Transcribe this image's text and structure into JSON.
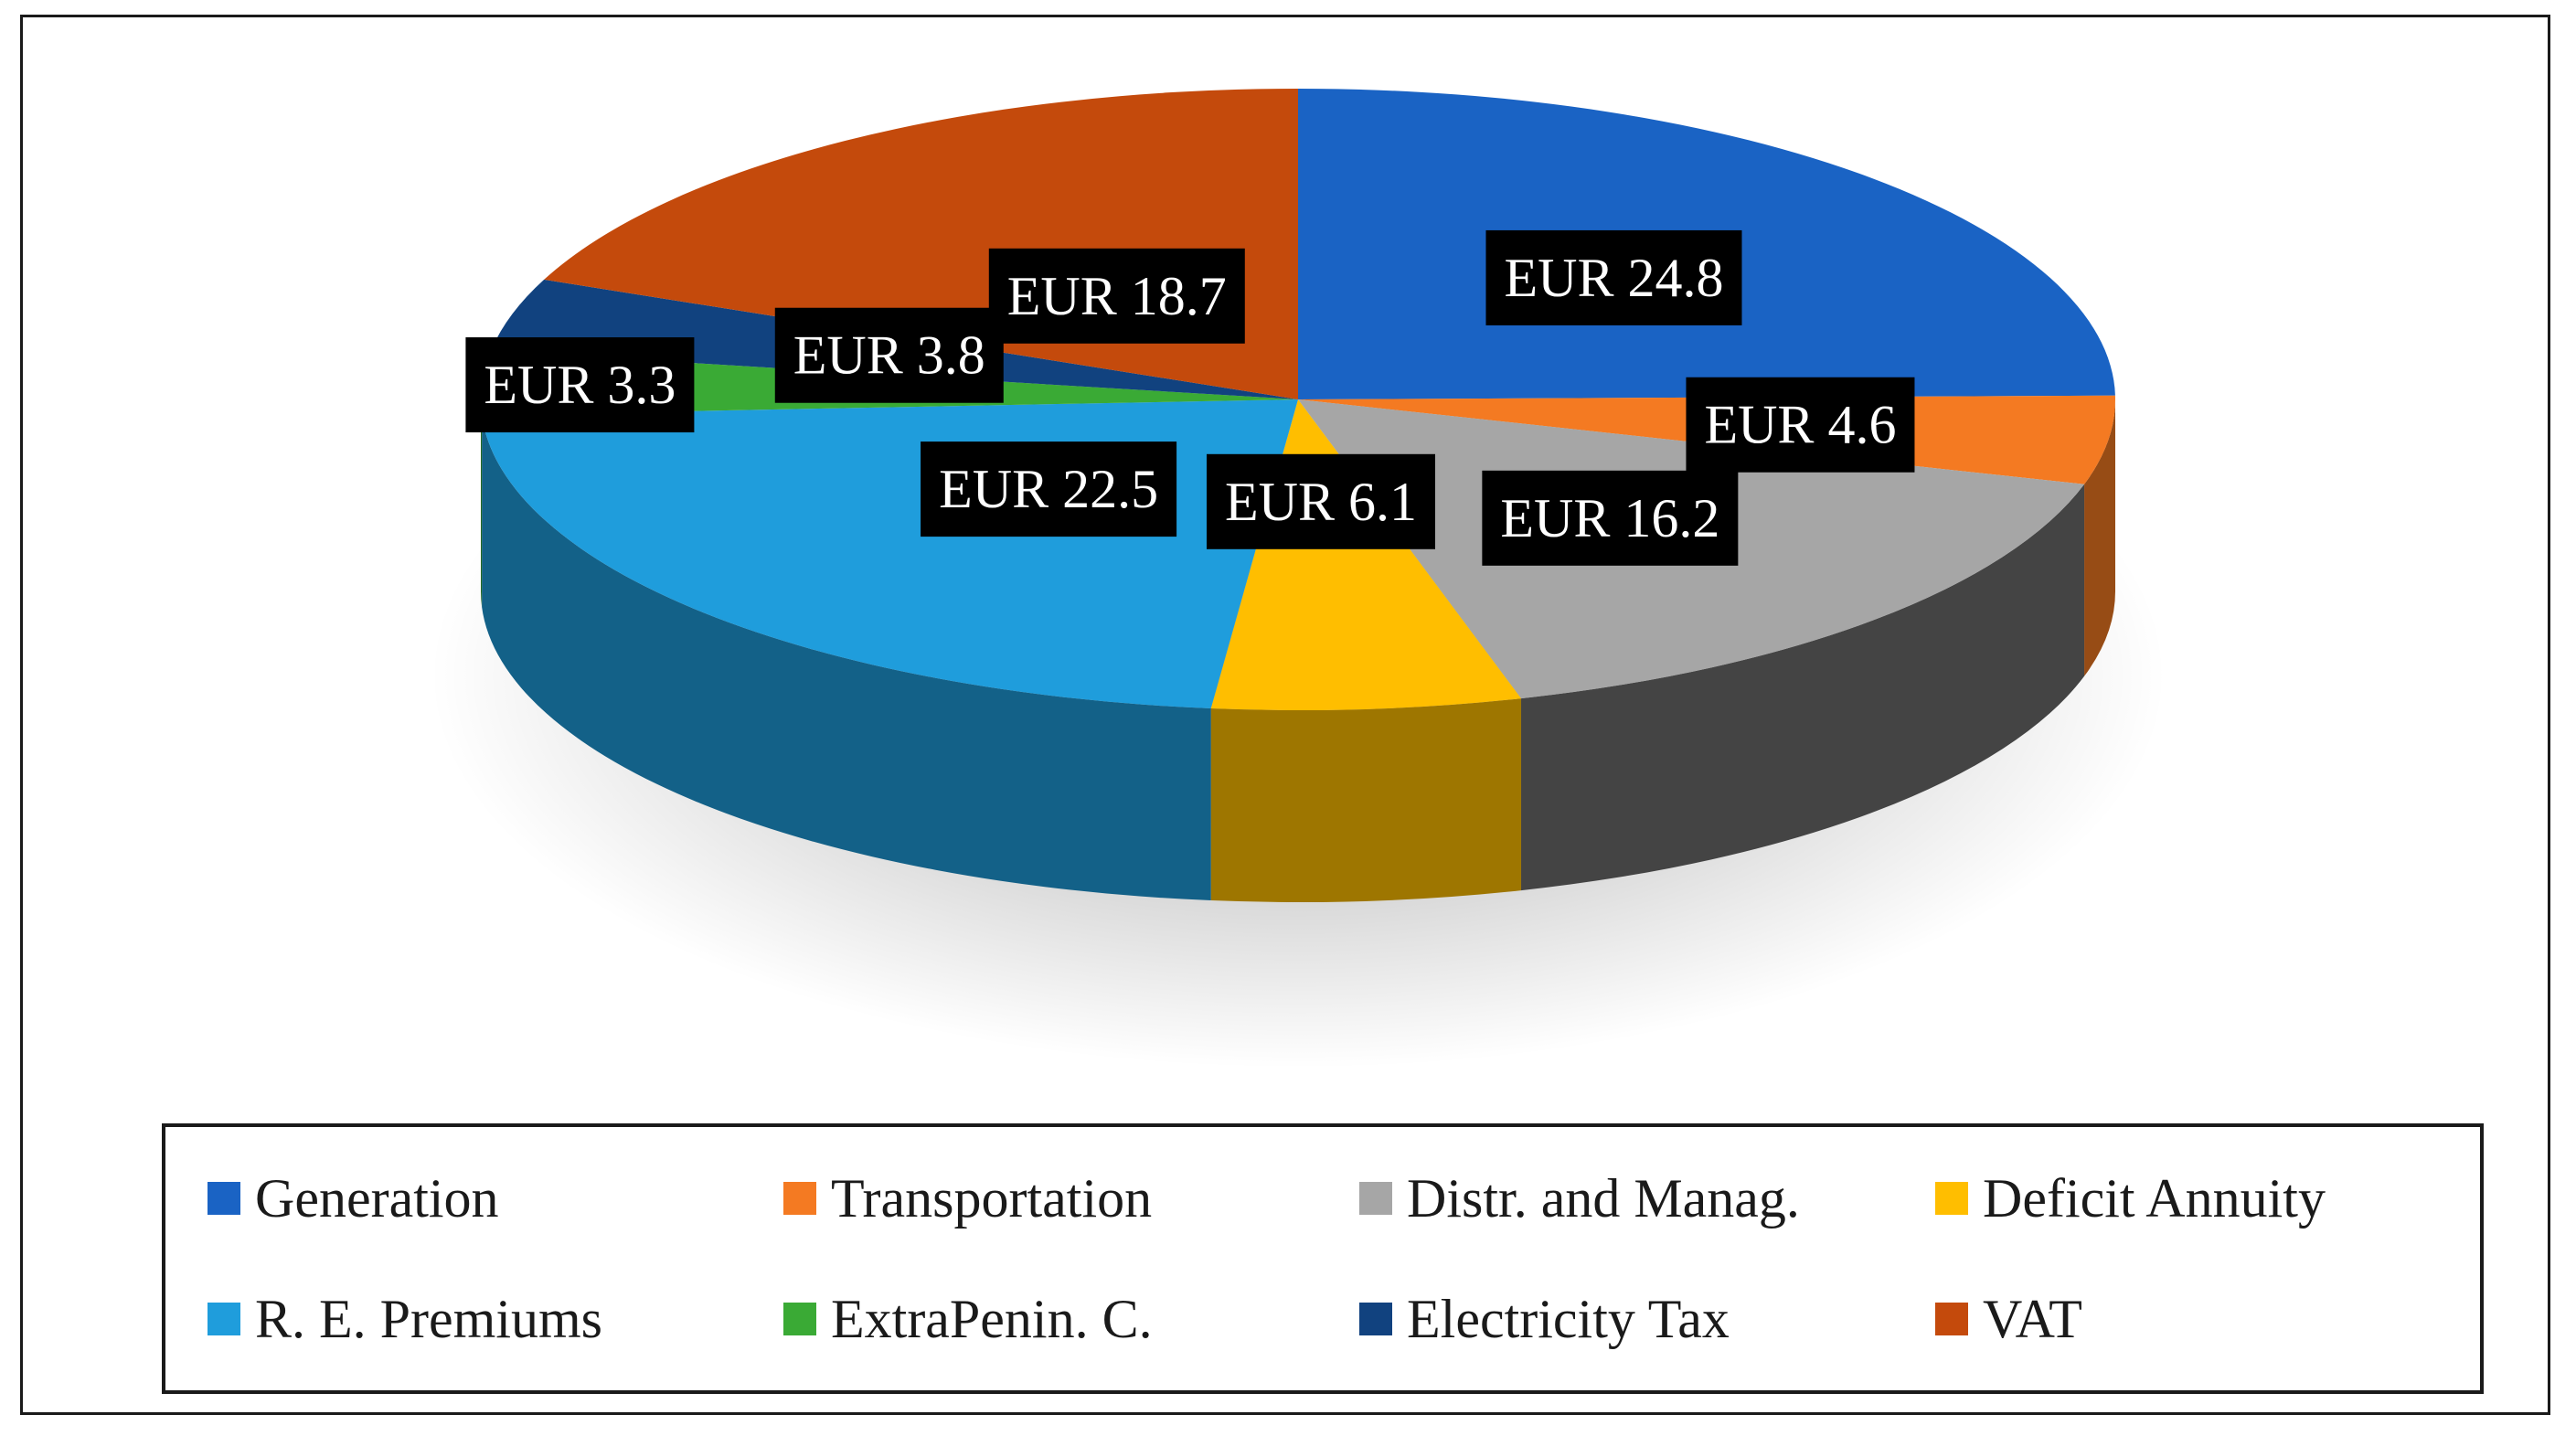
{
  "chart_data": {
    "type": "pie",
    "title": "",
    "style": "3d",
    "legend_placement": "bottom",
    "series": [
      {
        "label": "Generation",
        "value": 24.8,
        "data_label": "EUR 24.8",
        "color": "#1a63c4"
      },
      {
        "label": "Transportation",
        "value": 4.6,
        "data_label": "EUR 4.6",
        "color": "#f47a22"
      },
      {
        "label": "Distr. and Manag.",
        "value": 16.2,
        "data_label": "EUR 16.2",
        "color": "#a6a6a6"
      },
      {
        "label": "Deficit Annuity",
        "value": 6.1,
        "data_label": "EUR 6.1",
        "color": "#ffbe00"
      },
      {
        "label": "R. E. Premiums",
        "value": 22.5,
        "data_label": "EUR 22.5",
        "color": "#1f9ddc"
      },
      {
        "label": "ExtraPenin. C.",
        "value": 3.3,
        "data_label": "EUR 3.3",
        "color": "#3aaa35"
      },
      {
        "label": "Electricity Tax",
        "value": 3.8,
        "data_label": "EUR 3.8",
        "color": "#11427f"
      },
      {
        "label": "VAT",
        "value": 18.7,
        "data_label": "EUR 18.7",
        "color": "#c44a0c"
      }
    ]
  }
}
